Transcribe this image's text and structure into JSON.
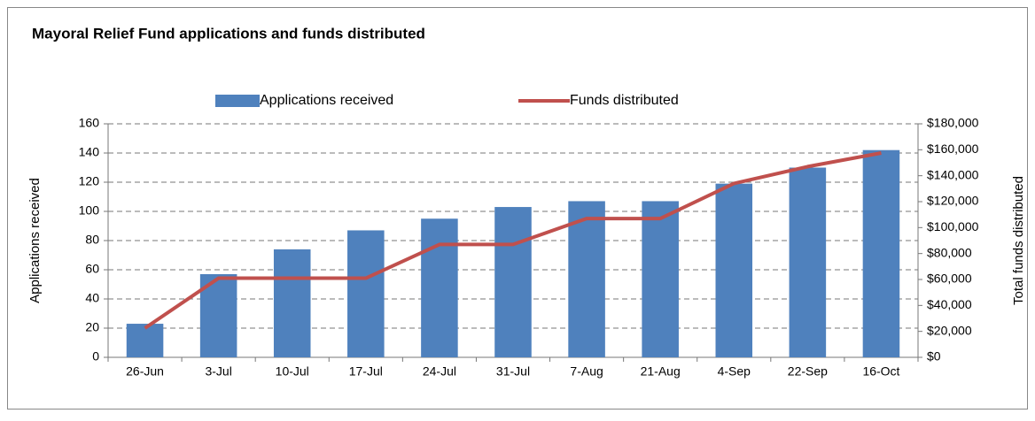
{
  "chart_data": {
    "type": "bar_line",
    "title": "Mayoral Relief Fund applications and funds distributed",
    "y_label": "Applications received",
    "y2_label": "Total funds distributed",
    "categories": [
      "26-Jun",
      "3-Jul",
      "10-Jul",
      "17-Jul",
      "24-Jul",
      "31-Jul",
      "7-Aug",
      "21-Aug",
      "4-Sep",
      "22-Sep",
      "16-Oct"
    ],
    "series": [
      {
        "name": "Applications received",
        "type": "bar",
        "color": "#4f81bd",
        "values": [
          23,
          57,
          74,
          87,
          95,
          103,
          107,
          107,
          119,
          130,
          142
        ]
      },
      {
        "name": "Funds distributed",
        "type": "line",
        "axis": "y2",
        "color": "#c0504d",
        "values": [
          22500,
          61000,
          61000,
          61000,
          87000,
          87000,
          107000,
          107000,
          134000,
          147000,
          157500
        ]
      }
    ],
    "ylim": [
      0,
      160
    ],
    "yticks": [
      0,
      20,
      40,
      60,
      80,
      100,
      120,
      140,
      160
    ],
    "y2lim": [
      0,
      180000
    ],
    "y2ticks": [
      {
        "value": 0,
        "label": "$0"
      },
      {
        "value": 20000,
        "label": "$20,000"
      },
      {
        "value": 40000,
        "label": "$40,000"
      },
      {
        "value": 60000,
        "label": "$60,000"
      },
      {
        "value": 80000,
        "label": "$80,000"
      },
      {
        "value": 100000,
        "label": "$100,000"
      },
      {
        "value": 120000,
        "label": "$120,000"
      },
      {
        "value": 140000,
        "label": "$140,000"
      },
      {
        "value": 160000,
        "label": "$160,000"
      },
      {
        "value": 180000,
        "label": "$180,000"
      }
    ],
    "grid": true,
    "legend": "top"
  }
}
